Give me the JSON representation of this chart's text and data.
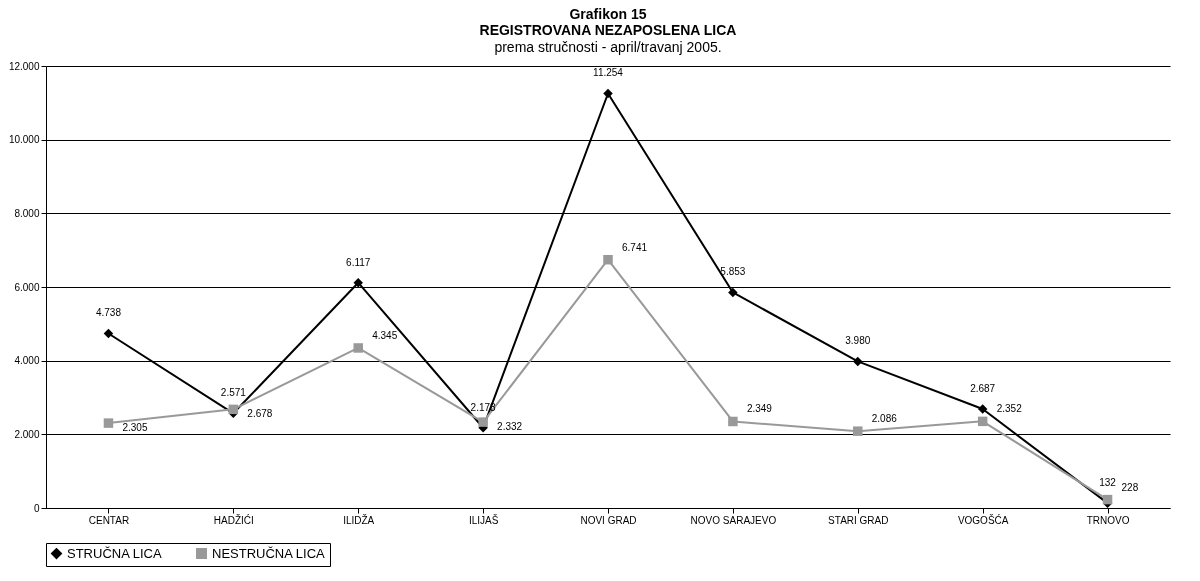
{
  "chart_data": {
    "type": "line",
    "title": "Grafikon 15\nREGISTROVANA NEZAPOSLENA LICA",
    "subtitle": "prema stručnosti - april/travanj 2005.",
    "categories": [
      "CENTAR",
      "HADŽIĆI",
      "ILIDŽA",
      "ILIJAŠ",
      "NOVI GRAD",
      "NOVO SARAJEVO",
      "STARI GRAD",
      "VOGOŠĆA",
      "TRNOVO"
    ],
    "series": [
      {
        "name": "STRUČNA LICA",
        "color": "#000000",
        "marker": "diamond",
        "values": [
          4738,
          2571,
          6117,
          2178,
          11254,
          5853,
          3980,
          2687,
          132
        ],
        "value_labels": [
          "4.738",
          "2.571",
          "6.117",
          "2.178",
          "11.254",
          "5.853",
          "3.980",
          "2.687",
          "132"
        ]
      },
      {
        "name": "NESTRUČNA LICA",
        "color": "#999999",
        "marker": "square",
        "values": [
          2305,
          2678,
          4345,
          2332,
          6741,
          2349,
          2086,
          2352,
          228
        ],
        "value_labels": [
          "2.305",
          "2.678",
          "4.345",
          "2.332",
          "6.741",
          "2.349",
          "2.086",
          "2.352",
          "228"
        ]
      }
    ],
    "ylim": [
      0,
      12000
    ],
    "yticks": [
      0,
      {
        "value": 2000,
        "label": "2.000"
      },
      {
        "value": 4000,
        "label": "4.000"
      },
      {
        "value": 6000,
        "label": "6.000"
      },
      {
        "value": 8000,
        "label": "8.000"
      },
      {
        "value": 10000,
        "label": "10.000"
      },
      {
        "value": 12000,
        "label": "12.000"
      }
    ],
    "grid": "y",
    "legend": "bottom"
  }
}
